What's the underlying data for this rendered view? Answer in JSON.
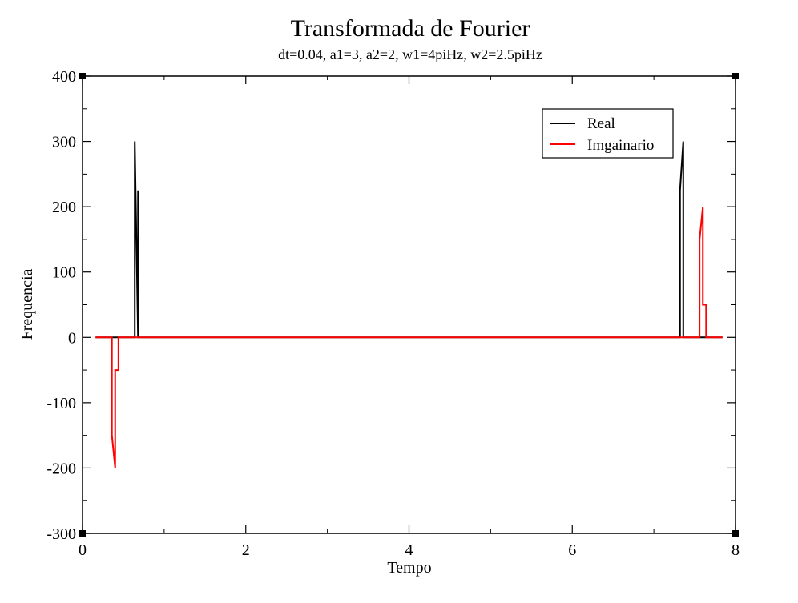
{
  "chart_data": {
    "type": "line",
    "title": "Transformada de Fourier",
    "subtitle": "dt=0.04, a1=3, a2=2, w1=4piHz, w2=2.5piHz",
    "xlabel": "Tempo",
    "ylabel": "Frequencia",
    "xlim": [
      0,
      8
    ],
    "ylim": [
      -300,
      400
    ],
    "x_ticks": [
      0,
      2,
      4,
      6,
      8
    ],
    "x_tick_labels": [
      "0",
      "2",
      "4",
      "6",
      "8"
    ],
    "y_ticks": [
      -300,
      -200,
      -100,
      0,
      100,
      200,
      300,
      400
    ],
    "y_tick_labels": [
      "-300",
      "-200",
      "-100",
      "0",
      "100",
      "200",
      "300",
      "400"
    ],
    "x_minor_step": 1,
    "y_minor_step": 50,
    "grid": false,
    "legend_position": "top-right",
    "series": [
      {
        "name": "Real",
        "color": "#000000",
        "points": [
          [
            0.16,
            0
          ],
          [
            0.6,
            0
          ],
          [
            0.64,
            0
          ],
          [
            0.64,
            75
          ],
          [
            0.64,
            150
          ],
          [
            0.64,
            225
          ],
          [
            0.64,
            300
          ],
          [
            0.68,
            0
          ],
          [
            0.68,
            75
          ],
          [
            0.68,
            150
          ],
          [
            0.68,
            225
          ],
          [
            0.68,
            0
          ],
          [
            7.32,
            0
          ],
          [
            7.32,
            0
          ],
          [
            7.32,
            75
          ],
          [
            7.32,
            150
          ],
          [
            7.32,
            225
          ],
          [
            7.36,
            300
          ],
          [
            7.36,
            225
          ],
          [
            7.36,
            150
          ],
          [
            7.36,
            75
          ],
          [
            7.36,
            0
          ],
          [
            7.4,
            0
          ],
          [
            7.84,
            0
          ]
        ]
      },
      {
        "name": "Imgainario",
        "color": "#ff0000",
        "points": [
          [
            0.16,
            0
          ],
          [
            0.36,
            0
          ],
          [
            0.36,
            0
          ],
          [
            0.36,
            -50
          ],
          [
            0.36,
            -100
          ],
          [
            0.36,
            -150
          ],
          [
            0.4,
            -200
          ],
          [
            0.4,
            -150
          ],
          [
            0.4,
            -100
          ],
          [
            0.4,
            -50
          ],
          [
            0.44,
            -50
          ],
          [
            0.44,
            0
          ],
          [
            0.44,
            0
          ],
          [
            7.56,
            0
          ],
          [
            7.56,
            0
          ],
          [
            7.56,
            50
          ],
          [
            7.56,
            100
          ],
          [
            7.56,
            150
          ],
          [
            7.6,
            200
          ],
          [
            7.6,
            150
          ],
          [
            7.6,
            100
          ],
          [
            7.6,
            50
          ],
          [
            7.64,
            50
          ],
          [
            7.64,
            0
          ],
          [
            7.64,
            0
          ],
          [
            7.84,
            0
          ]
        ]
      }
    ]
  }
}
